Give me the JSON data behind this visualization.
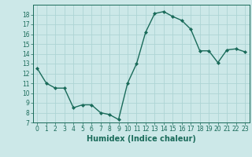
{
  "x": [
    0,
    1,
    2,
    3,
    4,
    5,
    6,
    7,
    8,
    9,
    10,
    11,
    12,
    13,
    14,
    15,
    16,
    17,
    18,
    19,
    20,
    21,
    22,
    23
  ],
  "y": [
    12.5,
    11.0,
    10.5,
    10.5,
    8.5,
    8.8,
    8.8,
    8.0,
    7.8,
    7.3,
    11.0,
    13.0,
    16.2,
    18.1,
    18.3,
    17.8,
    17.4,
    16.5,
    14.3,
    14.3,
    13.1,
    14.4,
    14.5,
    14.2
  ],
  "line_color": "#1a6b5a",
  "marker": "D",
  "marker_size": 2.0,
  "bg_color": "#cce8e8",
  "grid_color": "#aed4d4",
  "xlabel": "Humidex (Indice chaleur)",
  "ylim": [
    7,
    19
  ],
  "xlim": [
    -0.5,
    23.5
  ],
  "yticks": [
    7,
    8,
    9,
    10,
    11,
    12,
    13,
    14,
    15,
    16,
    17,
    18
  ],
  "xticks": [
    0,
    1,
    2,
    3,
    4,
    5,
    6,
    7,
    8,
    9,
    10,
    11,
    12,
    13,
    14,
    15,
    16,
    17,
    18,
    19,
    20,
    21,
    22,
    23
  ],
  "tick_color": "#1a6b5a",
  "label_color": "#1a6b5a",
  "axis_color": "#1a6b5a",
  "linewidth": 1.0,
  "tick_fontsize": 5.5,
  "xlabel_fontsize": 7.0
}
